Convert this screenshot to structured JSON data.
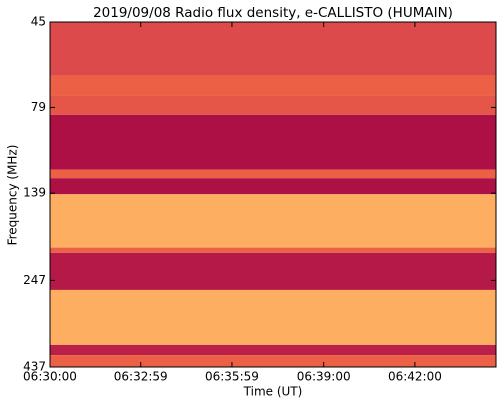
{
  "chart_data": {
    "type": "spectrogram",
    "title": "2019/09/08  Radio flux density, e-CALLISTO (HUMAIN)",
    "x_label": "Time (UT)",
    "y_label": "Frequency (MHz)",
    "xlim": [
      23400,
      24280
    ],
    "xticks": [
      {
        "value": 23400,
        "label": "06:30:00"
      },
      {
        "value": 23579,
        "label": "06:32:59"
      },
      {
        "value": 23759,
        "label": "06:35:59"
      },
      {
        "value": 23940,
        "label": "06:39:00"
      },
      {
        "value": 24120,
        "label": "06:42:00"
      }
    ],
    "ylim": [
      45,
      437
    ],
    "yticks": [
      45,
      79,
      139,
      247,
      437
    ],
    "y_log": true,
    "y_inverted": true,
    "frequency_bins": [
      45,
      64,
      73,
      83,
      119,
      126,
      140,
      199,
      206,
      263,
      378,
      404,
      437
    ],
    "intensity": [
      0.25,
      0.35,
      0.3,
      0.05,
      0.35,
      0.05,
      0.6,
      0.35,
      0.08,
      0.6,
      0.1,
      0.35
    ],
    "colormap": [
      "#9e0142",
      "#d53e4f",
      "#f46d43",
      "#fdae61",
      "#fee08b",
      "#e6f598"
    ]
  }
}
